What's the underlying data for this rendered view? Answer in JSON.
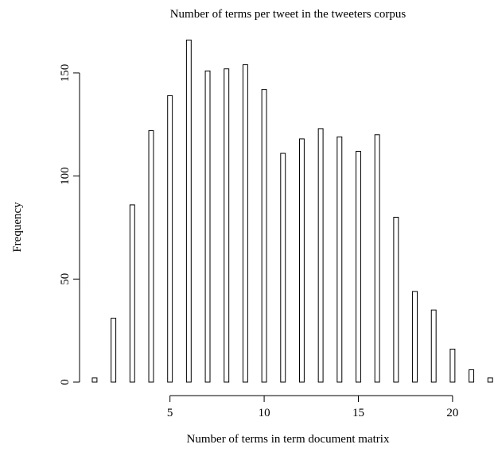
{
  "chart_data": {
    "type": "bar",
    "title": "Number of terms per tweet in the tweeters corpus",
    "x_label": "Number of terms in term document matrix",
    "y_label": "Frequency",
    "x": [
      1,
      2,
      3,
      4,
      5,
      6,
      7,
      8,
      9,
      10,
      11,
      12,
      13,
      14,
      15,
      16,
      17,
      18,
      19,
      20,
      21,
      22
    ],
    "values": [
      2,
      31,
      86,
      122,
      139,
      166,
      151,
      152,
      154,
      142,
      111,
      118,
      123,
      119,
      112,
      120,
      80,
      44,
      35,
      16,
      6,
      2
    ],
    "color": "#ffffff",
    "xlim": [
      0.2,
      22.2
    ],
    "xticks": [
      5,
      10,
      15,
      20
    ],
    "ylim": [
      0,
      170
    ],
    "yticks": [
      0,
      50,
      100,
      150
    ],
    "grid": false
  }
}
